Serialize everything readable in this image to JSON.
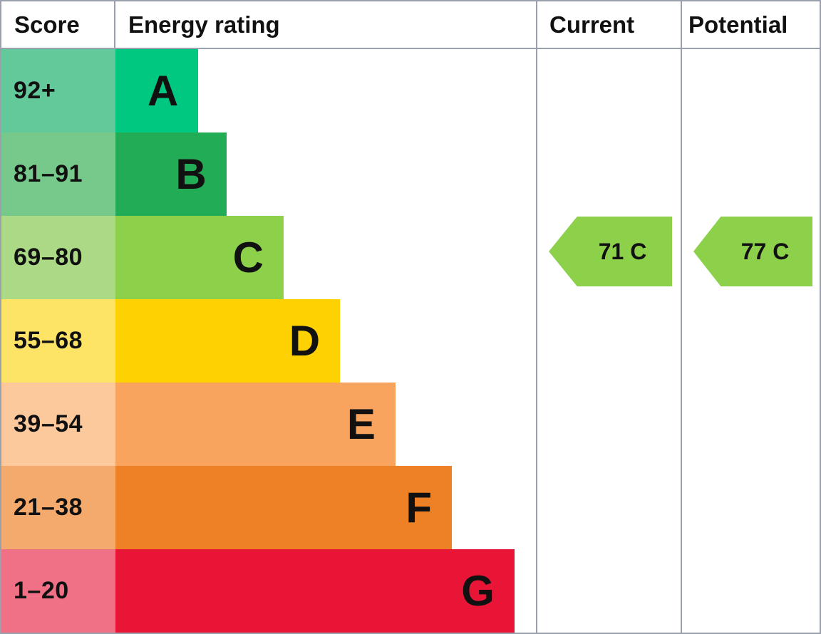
{
  "chart_data": {
    "type": "bar",
    "title": "Energy rating",
    "orientation": "horizontal",
    "categories": [
      "A",
      "B",
      "C",
      "D",
      "E",
      "F",
      "G"
    ],
    "score_ranges": [
      "92+",
      "81–91",
      "69–80",
      "55–68",
      "39–54",
      "21–38",
      "1–20"
    ],
    "bar_width_percent": [
      19.7,
      26.4,
      40.0,
      53.4,
      66.6,
      80.0,
      94.9
    ],
    "bar_colors": [
      "#00c881",
      "#22ac55",
      "#8dd14b",
      "#fed102",
      "#f8a45f",
      "#ee8125",
      "#e91537"
    ],
    "score_cell_colors": [
      "#63c99b",
      "#77c98b",
      "#abd985",
      "#fde366",
      "#fbc99c",
      "#f4aa6c",
      "#f07086"
    ],
    "current_rating": {
      "value": 71,
      "band": "C"
    },
    "potential_rating": {
      "value": 77,
      "band": "C"
    },
    "legend_position": "none",
    "grid": false
  },
  "header": {
    "score": "Score",
    "energy_rating": "Energy rating",
    "current": "Current",
    "potential": "Potential"
  },
  "bands": [
    {
      "letter": "A",
      "score": "92+",
      "bar_color": "#00c881",
      "cell_color": "#63c99b",
      "width_pct": 19.7
    },
    {
      "letter": "B",
      "score": "81–91",
      "bar_color": "#22ac55",
      "cell_color": "#77c98b",
      "width_pct": 26.4
    },
    {
      "letter": "C",
      "score": "69–80",
      "bar_color": "#8dd14b",
      "cell_color": "#abd985",
      "width_pct": 40.0
    },
    {
      "letter": "D",
      "score": "55–68",
      "bar_color": "#fed102",
      "cell_color": "#fde366",
      "width_pct": 53.4
    },
    {
      "letter": "E",
      "score": "39–54",
      "bar_color": "#f8a45f",
      "cell_color": "#fbc99c",
      "width_pct": 66.6
    },
    {
      "letter": "F",
      "score": "21–38",
      "bar_color": "#ee8125",
      "cell_color": "#f4aa6c",
      "width_pct": 80.0
    },
    {
      "letter": "G",
      "score": "1–20",
      "bar_color": "#e91537",
      "cell_color": "#f07086",
      "width_pct": 94.9
    }
  ],
  "ratings": {
    "current": {
      "label": "71 C",
      "color": "#8dd14b",
      "band_index": 2
    },
    "potential": {
      "label": "77 C",
      "color": "#8dd14b",
      "band_index": 2
    }
  },
  "colors": {
    "border": "#9aa0ac",
    "text": "#111111"
  }
}
